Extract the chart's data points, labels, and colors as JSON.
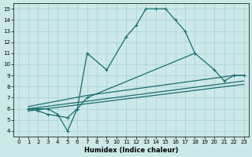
{
  "xlabel": "Humidex (Indice chaleur)",
  "bg_color": "#cce8e8",
  "line_color": "#1a6e6e",
  "xlim": [
    -0.5,
    23.5
  ],
  "ylim": [
    3.5,
    15.5
  ],
  "xticks": [
    0,
    1,
    2,
    3,
    4,
    5,
    6,
    7,
    8,
    9,
    10,
    11,
    12,
    13,
    14,
    15,
    16,
    17,
    18,
    19,
    20,
    21,
    22,
    23
  ],
  "yticks": [
    4,
    5,
    6,
    7,
    8,
    9,
    10,
    11,
    12,
    13,
    14,
    15
  ],
  "line1_x": [
    1,
    2,
    3,
    4,
    5,
    6,
    7,
    9,
    11,
    12,
    13,
    14,
    15,
    16,
    17,
    18
  ],
  "line1_y": [
    6,
    6,
    6,
    5.5,
    4,
    6,
    11,
    9.5,
    12.5,
    13.5,
    15,
    15,
    15,
    14,
    13,
    11
  ],
  "line2_x": [
    1,
    2,
    3,
    5,
    6,
    7,
    18,
    20,
    21,
    22,
    23
  ],
  "line2_y": [
    6,
    5.8,
    5.5,
    5.2,
    6,
    7,
    11,
    9.5,
    8.5,
    9,
    9
  ],
  "line3_x": [
    1,
    7,
    22,
    23
  ],
  "line3_y": [
    6.2,
    7.2,
    9.0,
    9.0
  ],
  "line4_x": [
    1,
    23
  ],
  "line4_y": [
    6.0,
    8.5
  ],
  "line5_x": [
    1,
    23
  ],
  "line5_y": [
    5.8,
    8.2
  ],
  "marker": "+"
}
